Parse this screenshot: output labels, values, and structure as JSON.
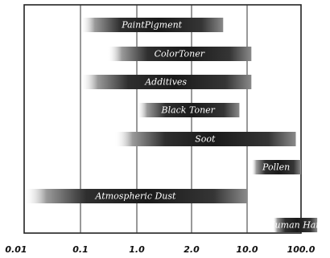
{
  "chart_data": {
    "type": "bar",
    "orientation": "horizontal-range",
    "x_ticks": [
      "0.01",
      "0.1",
      "1.0",
      "2.0",
      "10.0",
      "100.0"
    ],
    "categories": [
      "PaintPigment",
      "ColorToner",
      "Additives",
      "Black Toner",
      "Soot",
      "Pollen",
      "Atmospheric Dust",
      "Human Hair"
    ],
    "ranges": [
      {
        "label": "PaintPigment",
        "start": 0.1,
        "end": 5.0
      },
      {
        "label": "ColorToner",
        "start": 0.3,
        "end": 12.0
      },
      {
        "label": "Additives",
        "start": 0.1,
        "end": 12.0
      },
      {
        "label": "Black Toner",
        "start": 1.0,
        "end": 8.0
      },
      {
        "label": "Soot",
        "start": 0.4,
        "end": 80.0
      },
      {
        "label": "Pollen",
        "start": 12.0,
        "end": 100.0
      },
      {
        "label": "Atmospheric Dust",
        "start": 0.01,
        "end": 10.0
      },
      {
        "label": "Human Hair",
        "start": 30.0,
        "end": 200.0
      }
    ],
    "grid": true,
    "bar_color": "#1a1a1a"
  }
}
